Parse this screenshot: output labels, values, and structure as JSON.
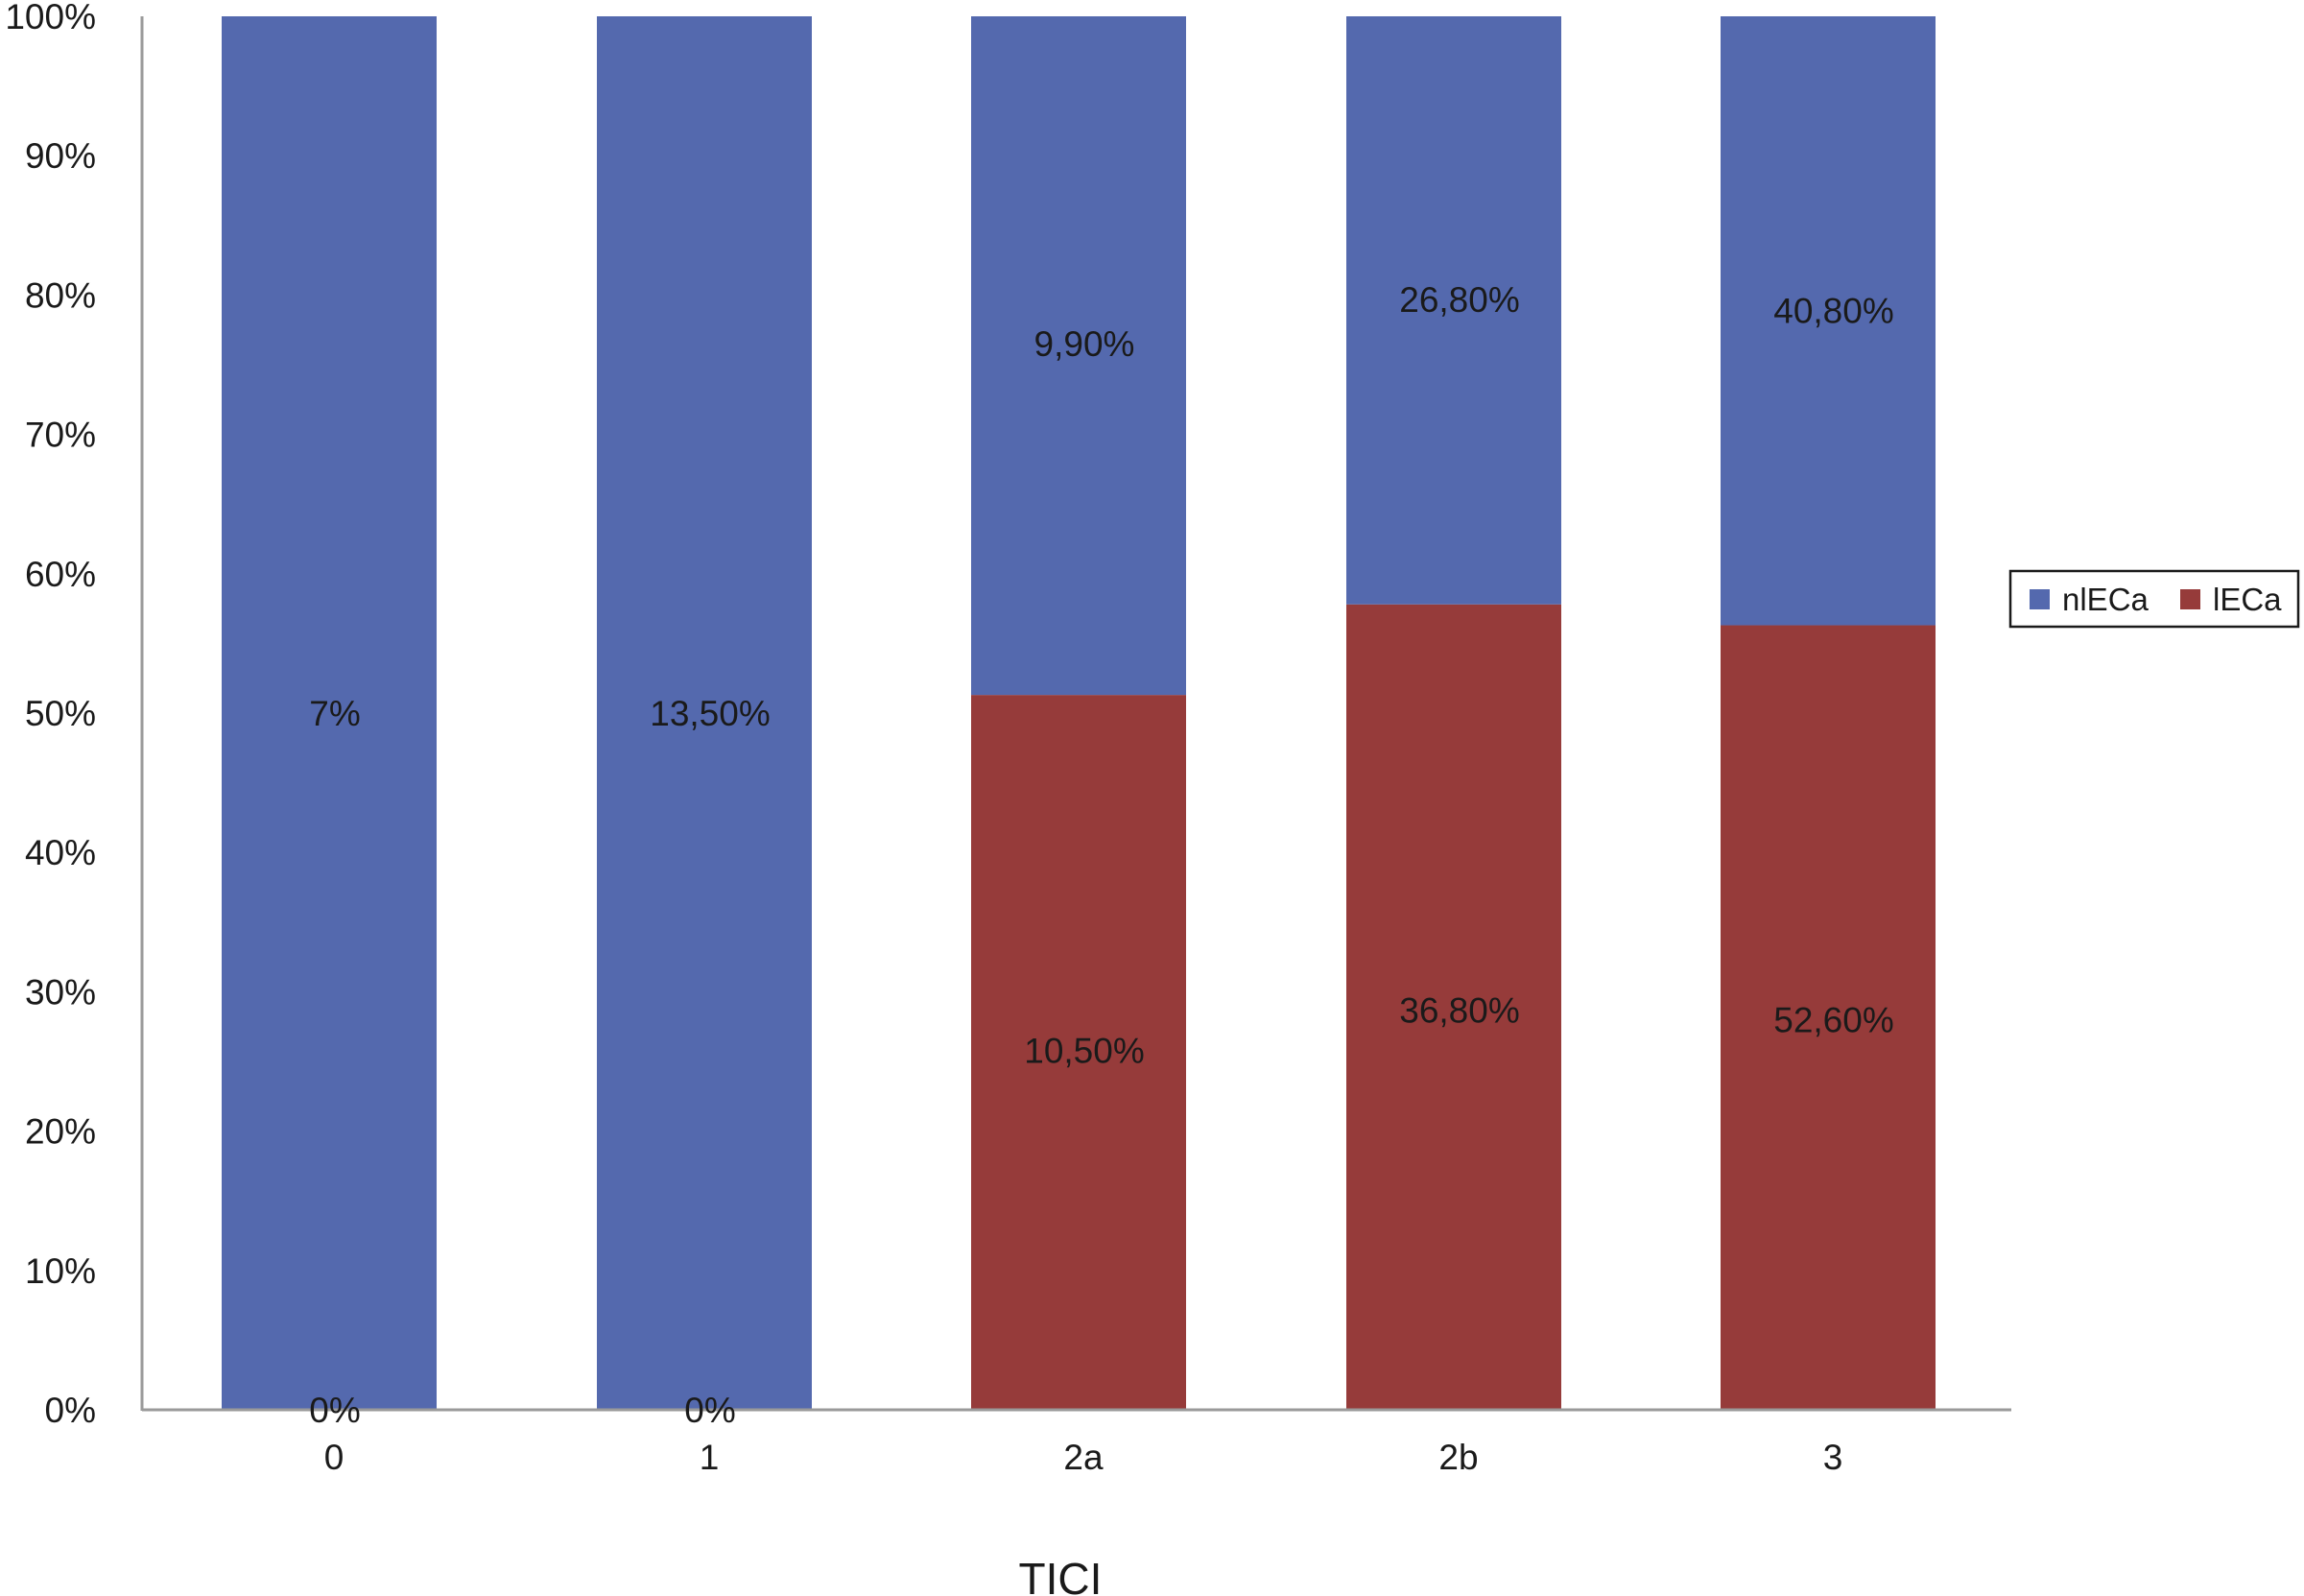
{
  "chart_data": {
    "type": "bar",
    "stacked": "percent",
    "title": "",
    "xlabel": "TICI",
    "ylabel": "",
    "categories": [
      "0",
      "1",
      "2a",
      "2b",
      "3"
    ],
    "ylim": [
      0,
      100
    ],
    "yticks": [
      "0%",
      "10%",
      "20%",
      "30%",
      "40%",
      "50%",
      "60%",
      "70%",
      "80%",
      "90%",
      "100%"
    ],
    "grid": false,
    "legend_position": "right",
    "series": [
      {
        "name": "lECa",
        "color": "#963B3A",
        "share_percent": [
          0,
          0,
          51.3,
          57.8,
          56.3
        ],
        "labels": [
          "0%",
          "0%",
          "10,50%",
          "36,80%",
          "52,60%"
        ]
      },
      {
        "name": "nlECa",
        "color": "#5469AE",
        "share_percent": [
          100,
          100,
          48.7,
          42.2,
          43.7
        ],
        "labels": [
          "7%",
          "13,50%",
          "9,90%",
          "26,80%",
          "40,80%"
        ]
      }
    ],
    "legend": [
      "nlECa",
      "lECa"
    ]
  }
}
